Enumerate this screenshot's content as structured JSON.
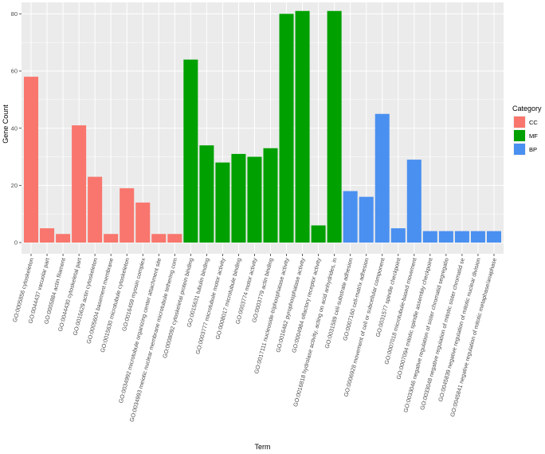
{
  "chart_data": {
    "type": "bar",
    "xlabel": "Term",
    "ylabel": "Gene Count",
    "ylim": [
      0,
      84
    ],
    "yticks": [
      0,
      20,
      40,
      60,
      80
    ],
    "grid": true,
    "legend_position": "right",
    "legend": {
      "title": "Category",
      "entries": [
        {
          "name": "CC",
          "color": "#F8766D"
        },
        {
          "name": "MF",
          "color": "#00A000"
        },
        {
          "name": "BP",
          "color": "#4A90F0"
        }
      ]
    },
    "bars": [
      {
        "term": "GO:0005856 cytoskeleton",
        "value": 58,
        "category": "CC"
      },
      {
        "term": "GO:0044437 vacuolar part",
        "value": 5,
        "category": "CC"
      },
      {
        "term": "GO:0005884 actin filament",
        "value": 3,
        "category": "CC"
      },
      {
        "term": "GO:0044430 cytoskeletal part",
        "value": 41,
        "category": "CC"
      },
      {
        "term": "GO:0015629 actin cytoskeleton",
        "value": 23,
        "category": "CC"
      },
      {
        "term": "GO:0005604 basement membrane",
        "value": 3,
        "category": "CC"
      },
      {
        "term": "GO:0015630 microtubule cytoskeleton",
        "value": 19,
        "category": "CC"
      },
      {
        "term": "GO:0016459 myosin complex",
        "value": 14,
        "category": "CC"
      },
      {
        "term": "GO:0034992 microtubule organizing center attachment site",
        "value": 3,
        "category": "CC"
      },
      {
        "term": "GO:0034993 meiotic nuclear membrane microtubule tethering com",
        "value": 3,
        "category": "CC"
      },
      {
        "term": "GO:0008092 cytoskeletal protein binding",
        "value": 64,
        "category": "MF"
      },
      {
        "term": "GO:0015631 tubulin binding",
        "value": 34,
        "category": "MF"
      },
      {
        "term": "GO:0003777 microtubule motor activity",
        "value": 28,
        "category": "MF"
      },
      {
        "term": "GO:0008017 microtubule binding",
        "value": 31,
        "category": "MF"
      },
      {
        "term": "GO:0003774 motor activity",
        "value": 30,
        "category": "MF"
      },
      {
        "term": "GO:0003779 actin binding",
        "value": 33,
        "category": "MF"
      },
      {
        "term": "GO:0017111 nucleoside-triphosphatase activity",
        "value": 80,
        "category": "MF"
      },
      {
        "term": "GO:0016462 pyrophosphatase activity",
        "value": 81,
        "category": "MF"
      },
      {
        "term": "GO:0004984 olfactory receptor activity",
        "value": 6,
        "category": "MF"
      },
      {
        "term": "GO:0016818 hydrolase activity, acting on acid anhydrides, in",
        "value": 81,
        "category": "MF"
      },
      {
        "term": "GO:0031589 cell-substrate adhesion",
        "value": 18,
        "category": "BP"
      },
      {
        "term": "GO:0007160 cell-matrix adhesion",
        "value": 16,
        "category": "BP"
      },
      {
        "term": "GO:0006928 movement of cell or subcellular component",
        "value": 45,
        "category": "BP"
      },
      {
        "term": "GO:0031577 spindle checkpoint",
        "value": 5,
        "category": "BP"
      },
      {
        "term": "GO:0007018 microtubule-based movement",
        "value": 29,
        "category": "BP"
      },
      {
        "term": "GO:0007094 mitotic spindle assembly checkpoint",
        "value": 4,
        "category": "BP"
      },
      {
        "term": "GO:0033046 negative regulation of sister chromatid segregatio",
        "value": 4,
        "category": "BP"
      },
      {
        "term": "GO:0033048 negative regulation of mitotic sister chromatid se",
        "value": 4,
        "category": "BP"
      },
      {
        "term": "GO:0045839 negative regulation of mitotic nuclear division",
        "value": 4,
        "category": "BP"
      },
      {
        "term": "GO:0045841 negative regulation of mitotic metaphase/anaphase",
        "value": 4,
        "category": "BP"
      }
    ]
  }
}
